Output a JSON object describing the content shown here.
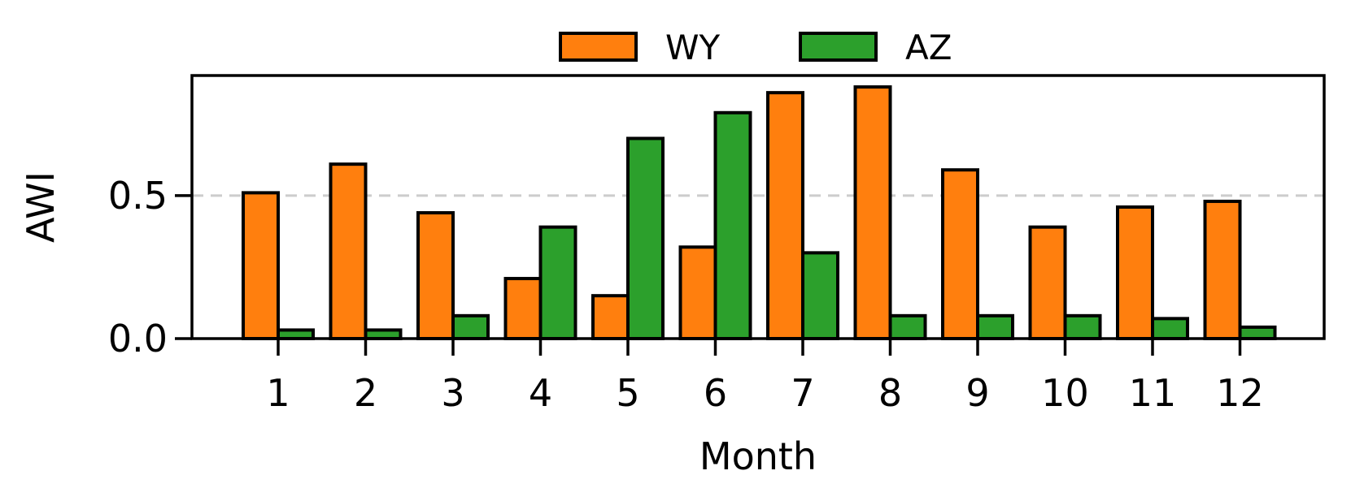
{
  "chart_data": {
    "type": "bar",
    "xlabel": "Month",
    "ylabel": "AWI",
    "categories": [
      "1",
      "2",
      "3",
      "4",
      "5",
      "6",
      "7",
      "8",
      "9",
      "10",
      "11",
      "12"
    ],
    "series": [
      {
        "name": "WY",
        "color": "#ff7f0e",
        "values": [
          0.51,
          0.61,
          0.44,
          0.21,
          0.15,
          0.32,
          0.86,
          0.88,
          0.59,
          0.39,
          0.46,
          0.48
        ]
      },
      {
        "name": "AZ",
        "color": "#2ca02c",
        "values": [
          0.03,
          0.03,
          0.08,
          0.39,
          0.7,
          0.79,
          0.3,
          0.08,
          0.08,
          0.08,
          0.07,
          0.04
        ]
      }
    ],
    "yticks": [
      "0.0",
      "0.5"
    ],
    "ylim": [
      0,
      0.92
    ],
    "reference_line": {
      "y": 0.5,
      "style": "dashed",
      "color": "#cccccc"
    },
    "legend_position": "top-center",
    "grid": false
  }
}
